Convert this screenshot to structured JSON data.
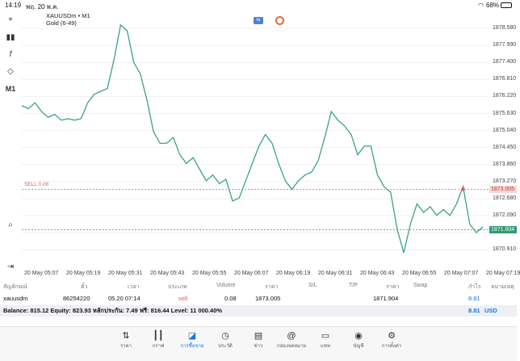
{
  "status": {
    "time": "14:19",
    "date": "พฤ. 20 พ.ค.",
    "battery": "68%"
  },
  "chart_header": {
    "symbol": "XAUUSDm • M1",
    "subtitle": "Gold (6-49)"
  },
  "toolbar": {
    "timeframe": "M1"
  },
  "chart_data": {
    "type": "line",
    "ylim": [
      1870.3,
      1879.2
    ],
    "y_ticks": [
      "1878.580",
      "1877.990",
      "1877.400",
      "1876.810",
      "1876.220",
      "1875.630",
      "1875.040",
      "1874.450",
      "1873.860",
      "1873.270",
      "1872.680",
      "1872.090",
      "1871.500",
      "1870.910"
    ],
    "y_tick_values": [
      1878.58,
      1877.99,
      1877.4,
      1876.81,
      1876.22,
      1875.63,
      1875.04,
      1874.45,
      1873.86,
      1873.27,
      1872.68,
      1872.09,
      1871.5,
      1870.91
    ],
    "x_ticks": [
      "20 May 05:07",
      "20 May 05:19",
      "20 May 05:31",
      "20 May 05:43",
      "20 May 05:55",
      "20 May 06:07",
      "20 May 06:19",
      "20 May 06:31",
      "20 May 06:43",
      "20 May 06:55",
      "20 May 07:07",
      "20 May 07:19"
    ],
    "series": [
      {
        "color": "#3aa57a",
        "values": [
          1875.9,
          1875.8,
          1876.0,
          1875.7,
          1875.5,
          1875.6,
          1875.4,
          1875.45,
          1875.4,
          1875.45,
          1876.0,
          1876.3,
          1876.4,
          1876.5,
          1877.5,
          1878.7,
          1878.5,
          1877.4,
          1877.0,
          1876.1,
          1875.0,
          1874.6,
          1874.6,
          1874.8,
          1874.2,
          1873.9,
          1874.1,
          1873.7,
          1873.3,
          1873.5,
          1873.2,
          1873.35,
          1872.6,
          1872.7,
          1873.3,
          1873.9,
          1874.5,
          1874.9,
          1874.6,
          1873.9,
          1873.3,
          1873.0,
          1873.3,
          1873.5,
          1873.6,
          1874.0,
          1874.8,
          1875.7,
          1875.4,
          1875.2,
          1874.9,
          1874.2,
          1874.5,
          1874.5,
          1873.5,
          1873.1,
          1872.9,
          1871.6,
          1870.8,
          1871.8,
          1872.5,
          1872.2,
          1872.4,
          1872.1,
          1872.3,
          1872.1,
          1872.5,
          1873.1,
          1871.8,
          1871.5,
          1871.7
        ]
      }
    ],
    "lines": [
      {
        "label": "SELL 0.08",
        "value": 1873.005,
        "color": "#e05a5a"
      },
      {
        "label": "",
        "value": 1871.604,
        "color": "#2e9c6e"
      }
    ]
  },
  "price_boxes": {
    "sell": "1873.005",
    "bid": "1871.604"
  },
  "table": {
    "headers": [
      "สัญลักษณ์",
      "ตั๋ว",
      "เวลา",
      "ประเภท",
      "Volume",
      "ราคา",
      "S/L",
      "T/P",
      "ราคา",
      "Swap",
      "กำไร",
      "หมายเหตุ"
    ],
    "row": {
      "symbol": "xauusdm",
      "ticket": "86254220",
      "time": "05.20 07:14",
      "type": "sell",
      "volume": "0.08",
      "price": "1873.005",
      "current_price": "1871.904",
      "profit": "8.81"
    }
  },
  "balance": {
    "text": "Balance: 815.12 Equity: 823.93 หลักประกัน: 7.49 ฟรี: 816.44 Level: 11 000.40%",
    "total": "8.81",
    "currency": "USD"
  },
  "nav": [
    {
      "label": "ราคา"
    },
    {
      "label": "กราฟ"
    },
    {
      "label": "การซื้อขาย"
    },
    {
      "label": "ประวัติ"
    },
    {
      "label": "ข่าว"
    },
    {
      "label": "กล่องจดหมาย"
    },
    {
      "label": "แชท"
    },
    {
      "label": "บัญชี"
    },
    {
      "label": "การตั้งค่า"
    }
  ]
}
